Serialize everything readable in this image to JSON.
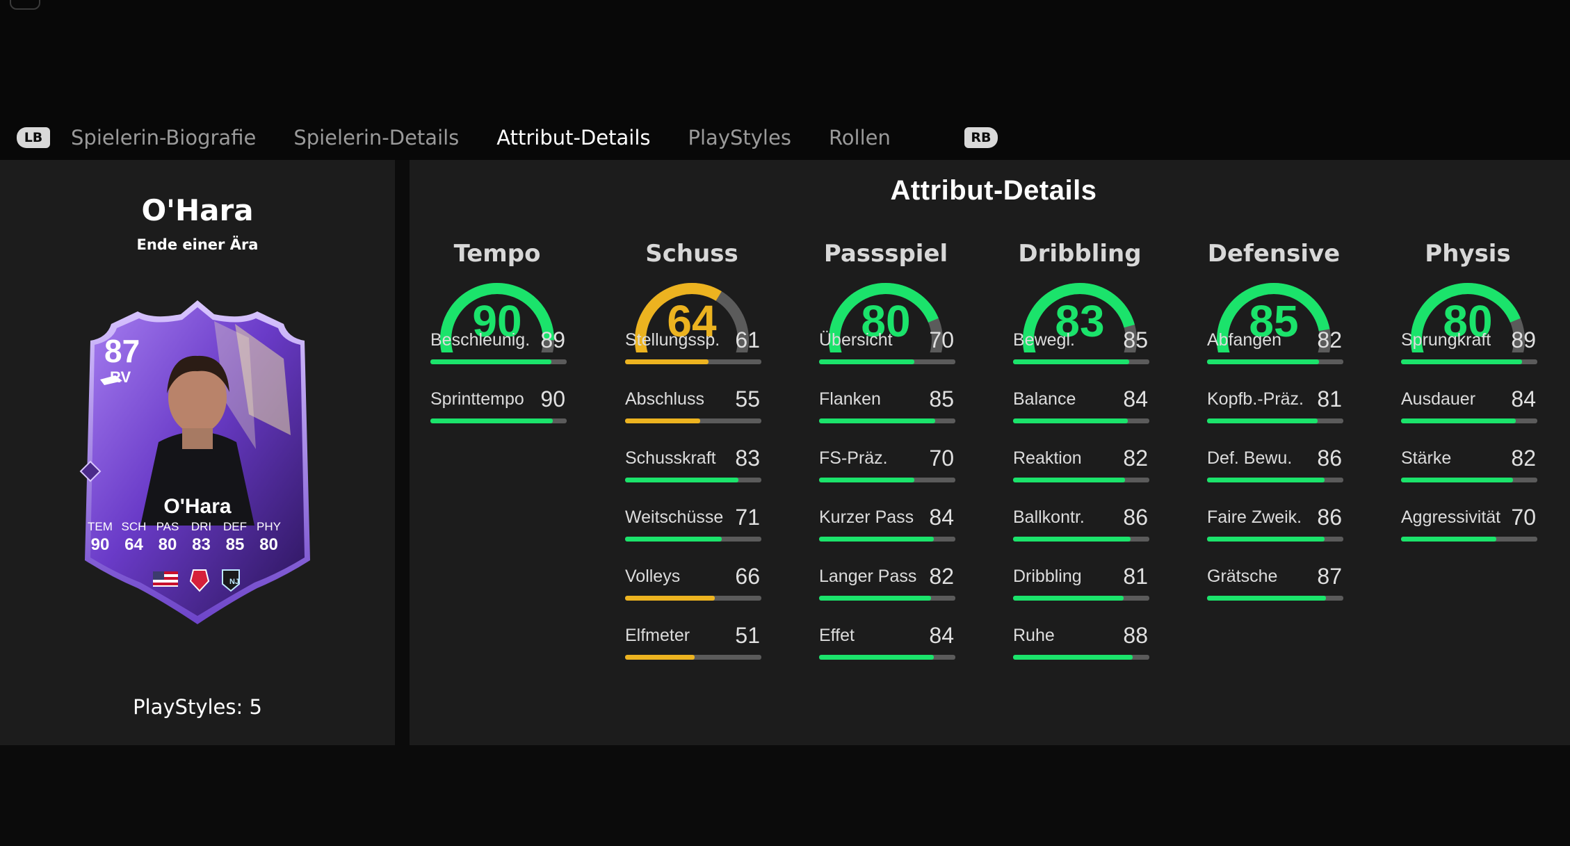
{
  "tabs": {
    "lb_label": "LB",
    "rb_label": "RB",
    "items": [
      {
        "label": "Spielerin-Biografie",
        "active": false
      },
      {
        "label": "Spielerin-Details",
        "active": false
      },
      {
        "label": "Attribut-Details",
        "active": true
      },
      {
        "label": "PlayStyles",
        "active": false
      },
      {
        "label": "Rollen",
        "active": false
      }
    ]
  },
  "player": {
    "name": "O'Hara",
    "card_subtitle": "Ende einer Ära",
    "playstyles_label": "PlayStyles: 5"
  },
  "card": {
    "rating": "87",
    "position": "RV",
    "name": "O'Hara",
    "stat_labels": [
      "TEM",
      "SCH",
      "PAS",
      "DRI",
      "DEF",
      "PHY"
    ],
    "stat_values": [
      "90",
      "64",
      "80",
      "83",
      "85",
      "80"
    ],
    "club_badge_text": "NJ"
  },
  "main": {
    "title": "Attribut-Details",
    "colors": {
      "high": "#1be36b",
      "mid": "#ecb320",
      "track": "#5b5b5b"
    },
    "categories": [
      {
        "name": "Tempo",
        "value": 90,
        "stats": [
          {
            "name": "Beschleunig.",
            "value": 89
          },
          {
            "name": "Sprinttempo",
            "value": 90
          }
        ]
      },
      {
        "name": "Schuss",
        "value": 64,
        "stats": [
          {
            "name": "Stellungssp.",
            "value": 61
          },
          {
            "name": "Abschluss",
            "value": 55
          },
          {
            "name": "Schusskraft",
            "value": 83
          },
          {
            "name": "Weitschüsse",
            "value": 71
          },
          {
            "name": "Volleys",
            "value": 66
          },
          {
            "name": "Elfmeter",
            "value": 51
          }
        ]
      },
      {
        "name": "Passspiel",
        "value": 80,
        "stats": [
          {
            "name": "Übersicht",
            "value": 70
          },
          {
            "name": "Flanken",
            "value": 85
          },
          {
            "name": "FS-Präz.",
            "value": 70
          },
          {
            "name": "Kurzer Pass",
            "value": 84
          },
          {
            "name": "Langer Pass",
            "value": 82
          },
          {
            "name": "Effet",
            "value": 84
          }
        ]
      },
      {
        "name": "Dribbling",
        "value": 83,
        "stats": [
          {
            "name": "Bewegl.",
            "value": 85
          },
          {
            "name": "Balance",
            "value": 84
          },
          {
            "name": "Reaktion",
            "value": 82
          },
          {
            "name": "Ballkontr.",
            "value": 86
          },
          {
            "name": "Dribbling",
            "value": 81
          },
          {
            "name": "Ruhe",
            "value": 88
          }
        ]
      },
      {
        "name": "Defensive",
        "value": 85,
        "stats": [
          {
            "name": "Abfangen",
            "value": 82
          },
          {
            "name": "Kopfb.-Präz.",
            "value": 81
          },
          {
            "name": "Def. Bewu.",
            "value": 86
          },
          {
            "name": "Faire Zweik.",
            "value": 86
          },
          {
            "name": "Grätsche",
            "value": 87
          }
        ]
      },
      {
        "name": "Physis",
        "value": 80,
        "stats": [
          {
            "name": "Sprungkraft",
            "value": 89
          },
          {
            "name": "Ausdauer",
            "value": 84
          },
          {
            "name": "Stärke",
            "value": 82
          },
          {
            "name": "Aggressivität",
            "value": 70
          }
        ]
      }
    ]
  }
}
